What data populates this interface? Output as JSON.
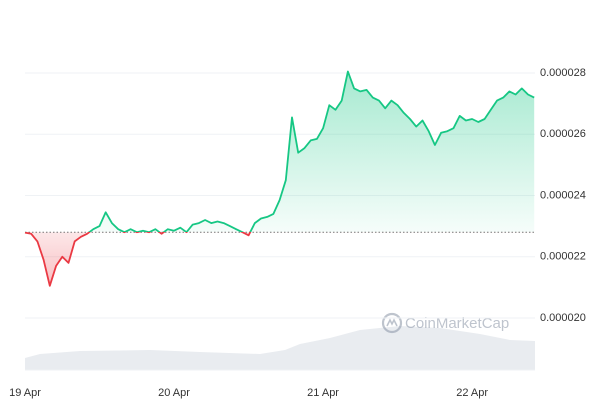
{
  "chart_data": {
    "type": "line",
    "watermark": "CoinMarketCap",
    "categories": [
      "19 Apr",
      null,
      null,
      null,
      null,
      null,
      null,
      null,
      null,
      null,
      null,
      null,
      null,
      null,
      null,
      null,
      null,
      null,
      null,
      null,
      null,
      null,
      null,
      null,
      "20 Apr",
      null,
      null,
      null,
      null,
      null,
      null,
      null,
      null,
      null,
      null,
      null,
      null,
      null,
      null,
      null,
      null,
      null,
      null,
      null,
      null,
      null,
      null,
      null,
      "21 Apr",
      null,
      null,
      null,
      null,
      null,
      null,
      null,
      null,
      null,
      null,
      null,
      null,
      null,
      null,
      null,
      null,
      null,
      null,
      null,
      null,
      null,
      null,
      null,
      "22 Apr",
      null,
      null,
      null,
      null,
      null,
      null,
      null,
      null,
      null,
      null
    ],
    "values": [
      2.279e-05,
      2.275e-05,
      2.25e-05,
      2.19e-05,
      2.105e-05,
      2.17e-05,
      2.2e-05,
      2.18e-05,
      2.25e-05,
      2.265e-05,
      2.275e-05,
      2.29e-05,
      2.3e-05,
      2.345e-05,
      2.31e-05,
      2.29e-05,
      2.28e-05,
      2.29e-05,
      2.28e-05,
      2.285e-05,
      2.28e-05,
      2.29e-05,
      2.275e-05,
      2.29e-05,
      2.285e-05,
      2.295e-05,
      2.28e-05,
      2.305e-05,
      2.31e-05,
      2.32e-05,
      2.31e-05,
      2.315e-05,
      2.31e-05,
      2.3e-05,
      2.29e-05,
      2.28e-05,
      2.27e-05,
      2.31e-05,
      2.325e-05,
      2.33e-05,
      2.34e-05,
      2.385e-05,
      2.45e-05,
      2.655e-05,
      2.54e-05,
      2.555e-05,
      2.58e-05,
      2.585e-05,
      2.62e-05,
      2.695e-05,
      2.68e-05,
      2.71e-05,
      2.805e-05,
      2.75e-05,
      2.74e-05,
      2.745e-05,
      2.72e-05,
      2.71e-05,
      2.685e-05,
      2.71e-05,
      2.695e-05,
      2.67e-05,
      2.65e-05,
      2.625e-05,
      2.645e-05,
      2.61e-05,
      2.565e-05,
      2.605e-05,
      2.61e-05,
      2.62e-05,
      2.66e-05,
      2.645e-05,
      2.65e-05,
      2.64e-05,
      2.65e-05,
      2.68e-05,
      2.71e-05,
      2.72e-05,
      2.74e-05,
      2.73e-05,
      2.75e-05,
      2.73e-05,
      2.72e-05
    ],
    "baseline": 2.28e-05,
    "up_color": "#16c784",
    "down_color": "#ea3943",
    "ylim": [
      1.83e-05,
      3.006e-05
    ],
    "yticks": [
      {
        "value": 2e-05,
        "label": "0.000020"
      },
      2.2e-05,
      2.4e-05,
      2.6e-05,
      2.8e-05
    ],
    "grid": true
  }
}
